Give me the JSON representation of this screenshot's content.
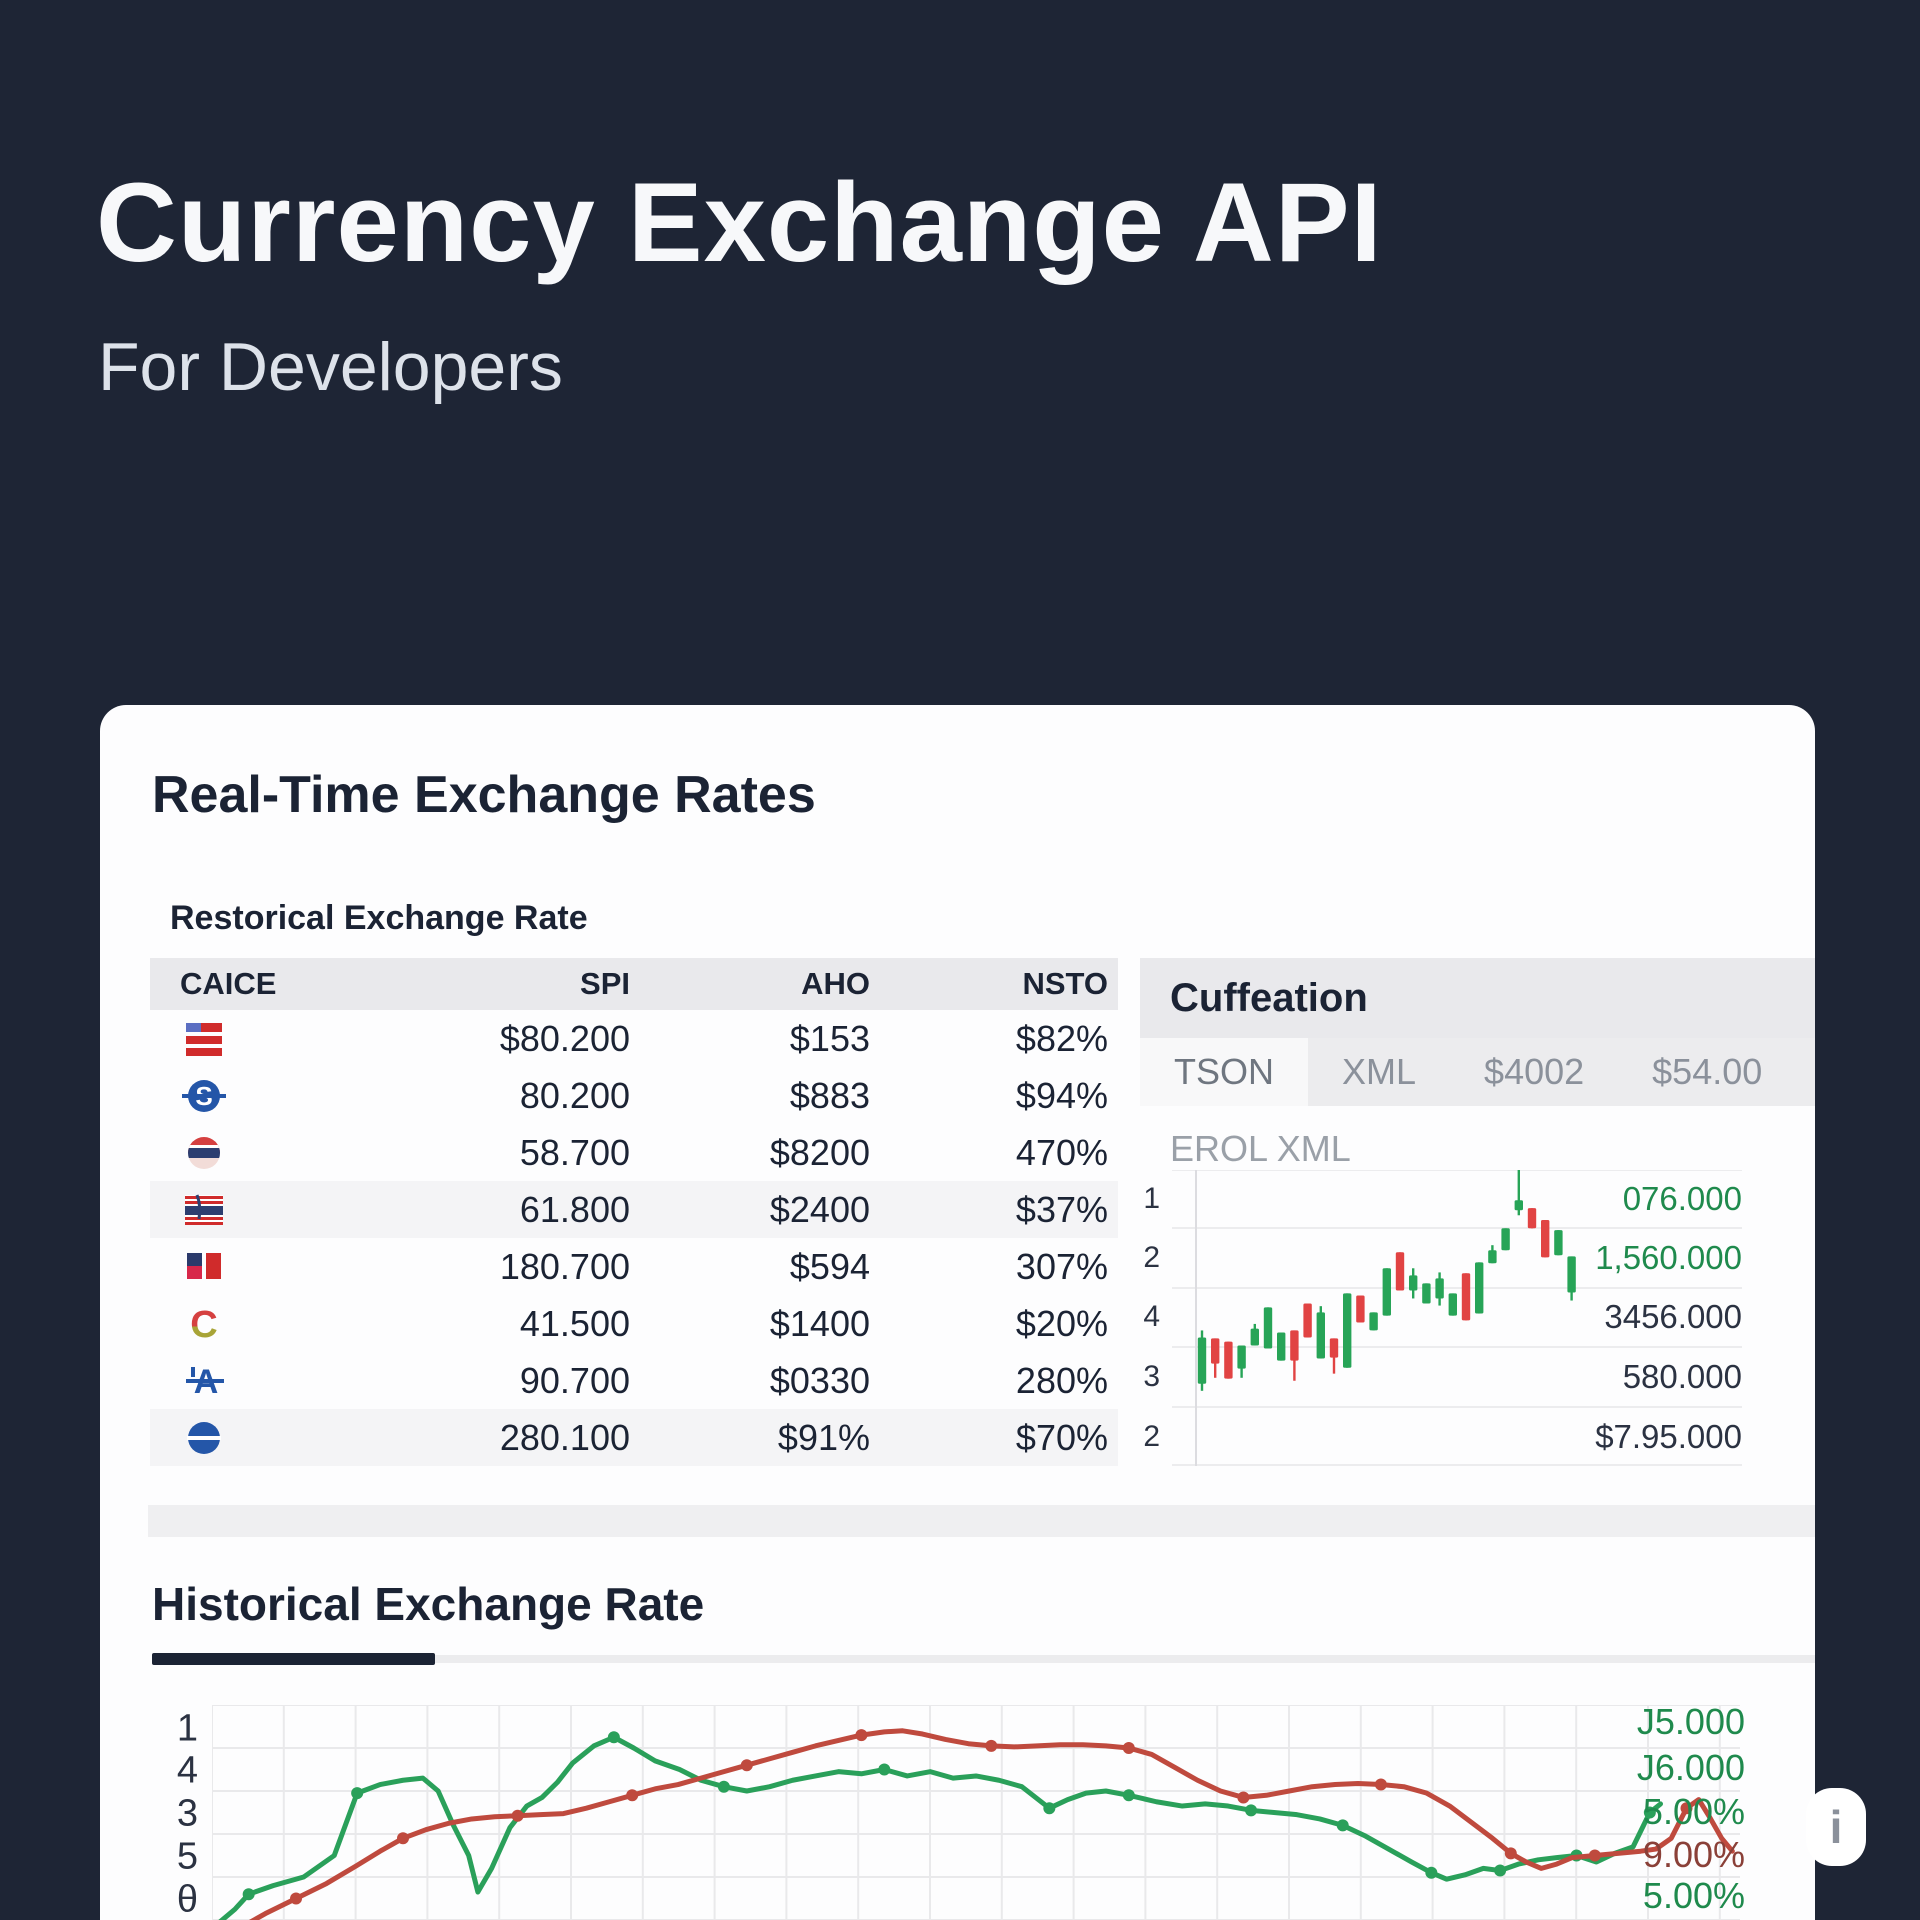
{
  "header": {
    "title": "Currency Exchange API",
    "subtitle": "For Developers"
  },
  "rates_section": {
    "title": "Real-Time Exchange Rates",
    "table_caption": "Restorical Exchange Rate",
    "columns": [
      "CAICE",
      "SPI",
      "AHO",
      "NSTO"
    ],
    "rows": [
      {
        "icon": "flag-red-stripes",
        "spi": "$80.200",
        "aho": "$153",
        "nsto": "$82%",
        "shaded": false
      },
      {
        "icon": "coin-s",
        "spi": "80.200",
        "aho": "$883",
        "nsto": "$94%",
        "shaded": false
      },
      {
        "icon": "coin-band",
        "spi": "58.700",
        "aho": "$8200",
        "nsto": "470%",
        "shaded": false
      },
      {
        "icon": "flag-band-stripes",
        "spi": "61.800",
        "aho": "$2400",
        "nsto": "$37%",
        "shaded": true
      },
      {
        "icon": "flag-blocks",
        "spi": "180.700",
        "aho": "$594",
        "nsto": "307%",
        "shaded": false
      },
      {
        "icon": "coin-c",
        "spi": "41.500",
        "aho": "$1400",
        "nsto": "$20%",
        "shaded": false
      },
      {
        "icon": "symbol-austral",
        "spi": "90.700",
        "aho": "$0330",
        "nsto": "280%",
        "shaded": false
      },
      {
        "icon": "coin-theta",
        "spi": "280.100",
        "aho": "$91%",
        "nsto": "$70%",
        "shaded": true
      }
    ]
  },
  "quote_panel": {
    "title": "Cuffeation",
    "tabs": [
      {
        "label": "TSON",
        "active": true
      },
      {
        "label": "XML",
        "active": false
      },
      {
        "label": "$4002",
        "active": false
      },
      {
        "label": "$54.00",
        "active": false
      }
    ],
    "subtitle": "EROL XML"
  },
  "history_section": {
    "title": "Historical Exchange Rate"
  },
  "watermark": "i",
  "colors": {
    "background": "#1e2535",
    "candle_green": "#27a457",
    "candle_red": "#e14343",
    "line_green": "#2aa05a",
    "line_red": "#bf4a3e",
    "label_green": "#1f8a4d",
    "label_maroon": "#8a4038"
  },
  "chart_data": [
    {
      "type": "candlestick",
      "title": "EROL XML",
      "legend_position": "none",
      "grid": true,
      "y_axis_left_labels": [
        "1",
        "2",
        "4",
        "3",
        "2"
      ],
      "y_axis_right_labels": [
        {
          "label": "076.000",
          "color": "green"
        },
        {
          "label": "1,560.000",
          "color": "green"
        },
        {
          "label": "3456.000",
          "color": "dark"
        },
        {
          "label": "580.000",
          "color": "dark"
        },
        {
          "label": "$7.95.000",
          "color": "dark"
        }
      ],
      "candles": [
        [
          "g",
          56.6,
          72.2,
          54.2,
          74.6
        ],
        [
          "r",
          56.9,
          65.4,
          56.9,
          70.2
        ],
        [
          "r",
          58.0,
          70.5,
          58.0,
          70.5
        ],
        [
          "g",
          59.3,
          67.1,
          59.3,
          70.2
        ],
        [
          "g",
          53.6,
          59.3,
          52.0,
          59.3
        ],
        [
          "g",
          46.4,
          60.3,
          46.4,
          60.3
        ],
        [
          "g",
          54.9,
          64.4,
          54.9,
          64.4
        ],
        [
          "r",
          54.2,
          64.4,
          54.2,
          71.2
        ],
        [
          "r",
          45.1,
          56.6,
          45.1,
          56.6
        ],
        [
          "g",
          48.1,
          63.7,
          46.0,
          63.7
        ],
        [
          "r",
          56.9,
          63.4,
          56.9,
          68.8
        ],
        [
          "g",
          41.7,
          66.8,
          41.7,
          66.8
        ],
        [
          "r",
          42.4,
          51.5,
          42.4,
          51.5
        ],
        [
          "g",
          48.1,
          54.2,
          48.1,
          54.2
        ],
        [
          "g",
          33.2,
          49.2,
          33.2,
          49.2
        ],
        [
          "r",
          27.8,
          40.7,
          27.8,
          40.7
        ],
        [
          "g",
          35.6,
          40.7,
          33.2,
          43.4
        ],
        [
          "g",
          38.3,
          45.1,
          38.3,
          45.1
        ],
        [
          "g",
          36.6,
          43.4,
          34.6,
          45.8
        ],
        [
          "g",
          41.7,
          49.2,
          41.7,
          49.2
        ],
        [
          "r",
          34.9,
          50.8,
          34.9,
          50.8
        ],
        [
          "g",
          31.2,
          48.5,
          31.2,
          48.5
        ],
        [
          "g",
          27.1,
          31.5,
          25.4,
          31.5
        ],
        [
          "g",
          19.7,
          27.1,
          19.7,
          27.1
        ],
        [
          "g",
          10.2,
          13.6,
          -2.0,
          15.3
        ],
        [
          "r",
          12.9,
          19.7,
          12.9,
          19.7
        ],
        [
          "r",
          16.9,
          29.5,
          16.9,
          29.5
        ],
        [
          "g",
          20.3,
          28.8,
          20.3,
          28.8
        ],
        [
          "g",
          29.2,
          41.4,
          29.2,
          44.1
        ]
      ]
    },
    {
      "type": "line",
      "title": "Historical Exchange Rate",
      "grid": true,
      "legend_position": "none",
      "y_axis_left_labels": [
        "1",
        "4",
        "3",
        "5",
        "θ"
      ],
      "y_axis_right_labels": [
        {
          "label": "J5.000",
          "color": "green"
        },
        {
          "label": "J6.000",
          "color": "green"
        },
        {
          "label": "5.00%",
          "color": "green"
        },
        {
          "label": "9.00%",
          "color": "maroon"
        },
        {
          "label": "5.00%",
          "color": "green"
        }
      ],
      "series": [
        {
          "name": "green",
          "color": "#2aa05a",
          "points": [
            [
              0,
              104
            ],
            [
              1.5,
              95
            ],
            [
              2.4,
              88
            ],
            [
              4,
              84
            ],
            [
              6,
              80
            ],
            [
              8,
              70
            ],
            [
              9.5,
              41
            ],
            [
              11,
              37
            ],
            [
              12.5,
              35
            ],
            [
              13.8,
              34
            ],
            [
              14.8,
              40
            ],
            [
              15.8,
              56
            ],
            [
              16.8,
              70
            ],
            [
              17.4,
              87
            ],
            [
              18.3,
              76
            ],
            [
              19.5,
              57
            ],
            [
              20.6,
              47
            ],
            [
              21.6,
              43
            ],
            [
              22.6,
              36
            ],
            [
              23.6,
              27
            ],
            [
              25,
              19
            ],
            [
              26.3,
              15
            ],
            [
              27.6,
              20
            ],
            [
              29,
              26
            ],
            [
              30.6,
              30
            ],
            [
              32,
              35
            ],
            [
              33.5,
              38
            ],
            [
              35,
              40
            ],
            [
              36.5,
              38
            ],
            [
              38,
              35
            ],
            [
              39.5,
              33
            ],
            [
              41,
              31
            ],
            [
              42.5,
              32
            ],
            [
              44,
              30
            ],
            [
              45.5,
              33
            ],
            [
              47,
              31
            ],
            [
              48.5,
              34
            ],
            [
              50,
              33
            ],
            [
              51.5,
              35
            ],
            [
              53,
              38
            ],
            [
              54.8,
              48
            ],
            [
              56,
              44
            ],
            [
              57.2,
              41
            ],
            [
              58.5,
              40
            ],
            [
              60,
              42
            ],
            [
              61.8,
              45
            ],
            [
              63.5,
              47
            ],
            [
              65,
              46
            ],
            [
              66.5,
              47
            ],
            [
              68,
              49
            ],
            [
              69.5,
              50
            ],
            [
              71,
              51
            ],
            [
              72.5,
              53
            ],
            [
              74,
              56
            ],
            [
              75.5,
              61
            ],
            [
              77,
              67
            ],
            [
              78.5,
              73
            ],
            [
              79.8,
              78
            ],
            [
              80.8,
              81
            ],
            [
              82,
              79
            ],
            [
              83.2,
              76
            ],
            [
              84.3,
              77
            ],
            [
              85.5,
              74
            ],
            [
              86.8,
              72
            ],
            [
              88,
              71
            ],
            [
              89.3,
              70
            ],
            [
              90.6,
              73
            ],
            [
              91.8,
              69
            ],
            [
              93,
              66
            ],
            [
              94.1,
              50
            ],
            [
              94.8,
              46
            ]
          ],
          "marker_indices": [
            2,
            6,
            21,
            26,
            33,
            40,
            44,
            49,
            53,
            57,
            61,
            65,
            69
          ]
        },
        {
          "name": "red",
          "color": "#bf4a3e",
          "points": [
            [
              0,
              112
            ],
            [
              2,
              103
            ],
            [
              3.5,
              97
            ],
            [
              5.5,
              90
            ],
            [
              7.5,
              83
            ],
            [
              9.4,
              75
            ],
            [
              11,
              68
            ],
            [
              12.5,
              62
            ],
            [
              14,
              58
            ],
            [
              15.5,
              55
            ],
            [
              17,
              53
            ],
            [
              18.5,
              52
            ],
            [
              20,
              51.5
            ],
            [
              21.5,
              51
            ],
            [
              23,
              50.5
            ],
            [
              24.5,
              48
            ],
            [
              26,
              45
            ],
            [
              27.5,
              42
            ],
            [
              29,
              39
            ],
            [
              30.5,
              37
            ],
            [
              32,
              34
            ],
            [
              33.5,
              31
            ],
            [
              35,
              28
            ],
            [
              36.5,
              25
            ],
            [
              38,
              22
            ],
            [
              39.5,
              19
            ],
            [
              41,
              16.5
            ],
            [
              42.5,
              14
            ],
            [
              44,
              12.5
            ],
            [
              45.2,
              12
            ],
            [
              46.5,
              13.5
            ],
            [
              48,
              16
            ],
            [
              49.5,
              18
            ],
            [
              51,
              19
            ],
            [
              52.5,
              19.5
            ],
            [
              54,
              19
            ],
            [
              55.5,
              18.5
            ],
            [
              57,
              18.5
            ],
            [
              58.5,
              19
            ],
            [
              60,
              20
            ],
            [
              61.5,
              23
            ],
            [
              63,
              29
            ],
            [
              64.5,
              35
            ],
            [
              66,
              40
            ],
            [
              67.5,
              43
            ],
            [
              69,
              42
            ],
            [
              70.5,
              40
            ],
            [
              72,
              38
            ],
            [
              73.5,
              37
            ],
            [
              75,
              36.5
            ],
            [
              76.5,
              37
            ],
            [
              78,
              38
            ],
            [
              79.5,
              41
            ],
            [
              81,
              47
            ],
            [
              82.5,
              55
            ],
            [
              83.8,
              62
            ],
            [
              85,
              69
            ],
            [
              86,
              73
            ],
            [
              87,
              76
            ],
            [
              88,
              74
            ],
            [
              89,
              71
            ],
            [
              90.5,
              70
            ],
            [
              92,
              69
            ],
            [
              93.5,
              68
            ],
            [
              94.5,
              67
            ],
            [
              95.5,
              62
            ],
            [
              96.5,
              48
            ],
            [
              97.3,
              44
            ],
            [
              98,
              52
            ],
            [
              98.8,
              62
            ],
            [
              99.5,
              68
            ]
          ],
          "marker_indices": [
            3,
            7,
            12,
            17,
            22,
            27,
            33,
            39,
            44,
            50,
            56,
            61,
            66
          ]
        }
      ]
    }
  ]
}
